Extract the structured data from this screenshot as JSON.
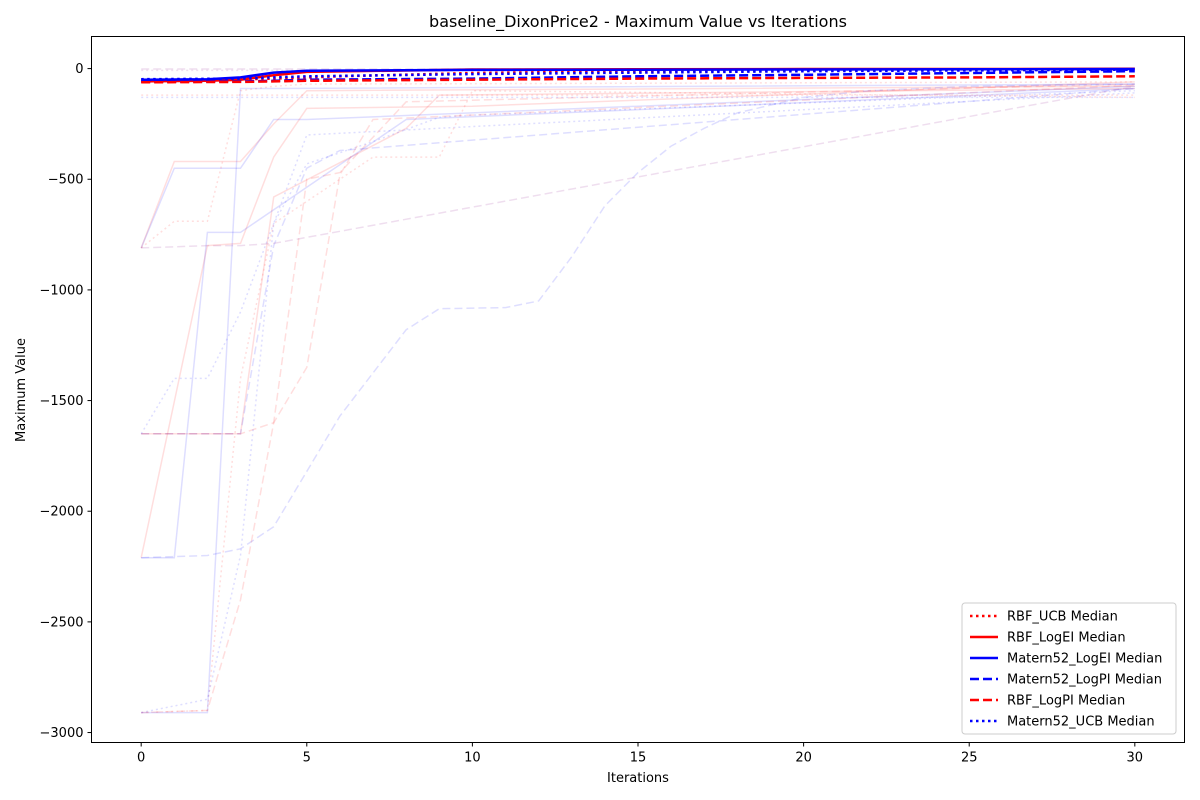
{
  "chart_data": {
    "type": "line",
    "title": "baseline_DixonPrice2 - Maximum Value vs Iterations",
    "xlabel": "Iterations",
    "ylabel": "Maximum Value",
    "xlim": [
      -1.5,
      31.5
    ],
    "ylim": [
      -3045,
      145
    ],
    "x_ticks": [
      0,
      5,
      10,
      15,
      20,
      25,
      30
    ],
    "y_ticks": [
      0,
      -500,
      -1000,
      -1500,
      -2000,
      -2500,
      -3000
    ],
    "y_tick_labels": [
      "0",
      "−500",
      "−1000",
      "−1500",
      "−2000",
      "−2500",
      "−3000"
    ],
    "grid": false,
    "legend_position": "lower-right",
    "series": [
      {
        "name": "RBF_UCB Median",
        "color": "#ff0000",
        "style": "dotted",
        "x": [
          0,
          2,
          4,
          6,
          10,
          15,
          20,
          25,
          30
        ],
        "y": [
          -55,
          -52,
          -45,
          -35,
          -20,
          -12,
          -8,
          -6,
          -4
        ]
      },
      {
        "name": "RBF_LogEI Median",
        "color": "#ff0000",
        "style": "solid",
        "x": [
          0,
          2,
          3,
          4,
          5,
          10,
          15,
          20,
          25,
          30
        ],
        "y": [
          -58,
          -55,
          -50,
          -30,
          -15,
          -4,
          -3,
          -2,
          -2,
          -1
        ]
      },
      {
        "name": "Matern52_LogEI Median",
        "color": "#0000ff",
        "style": "solid",
        "x": [
          0,
          2,
          3,
          4,
          5,
          10,
          15,
          20,
          25,
          30
        ],
        "y": [
          -50,
          -48,
          -40,
          -18,
          -10,
          -6,
          -5,
          -4,
          -3,
          -2
        ]
      },
      {
        "name": "Matern52_LogPI Median",
        "color": "#0000ff",
        "style": "dashed",
        "x": [
          0,
          3,
          4,
          5,
          10,
          15,
          20,
          25,
          30
        ],
        "y": [
          -60,
          -58,
          -55,
          -50,
          -45,
          -35,
          -28,
          -20,
          -12
        ]
      },
      {
        "name": "RBF_LogPI Median",
        "color": "#ff0000",
        "style": "dashed",
        "x": [
          0,
          3,
          4,
          5,
          10,
          15,
          20,
          25,
          30
        ],
        "y": [
          -62,
          -60,
          -58,
          -55,
          -50,
          -45,
          -42,
          -40,
          -35
        ]
      },
      {
        "name": "Matern52_UCB Median",
        "color": "#0000ff",
        "style": "dotted",
        "x": [
          0,
          3,
          4,
          5,
          10,
          15,
          20,
          25,
          30
        ],
        "y": [
          -48,
          -45,
          -40,
          -35,
          -25,
          -18,
          -12,
          -8,
          -5
        ]
      }
    ],
    "individual_runs": [
      {
        "color": "#ff0000",
        "style": "solid",
        "x": [
          0,
          1,
          3,
          4,
          5,
          30
        ],
        "y": [
          -810,
          -420,
          -420,
          -250,
          -100,
          -80
        ]
      },
      {
        "color": "#ff0000",
        "style": "solid",
        "x": [
          0,
          1,
          3,
          4,
          8,
          9,
          30
        ],
        "y": [
          -1650,
          -1650,
          -1650,
          -580,
          -270,
          -120,
          -90
        ]
      },
      {
        "color": "#ff0000",
        "style": "solid",
        "x": [
          0,
          2,
          3,
          4,
          5,
          10,
          30
        ],
        "y": [
          -2210,
          -800,
          -790,
          -400,
          -180,
          -170,
          -60
        ]
      },
      {
        "color": "#ff0000",
        "style": "dashed",
        "x": [
          0,
          2,
          3,
          4,
          5,
          6,
          8,
          30
        ],
        "y": [
          -2910,
          -2900,
          -2400,
          -1600,
          -500,
          -470,
          -150,
          -70
        ]
      },
      {
        "color": "#ff0000",
        "style": "dashed",
        "x": [
          0,
          3,
          4,
          5,
          6,
          7,
          30
        ],
        "y": [
          -1650,
          -1650,
          -1600,
          -1350,
          -480,
          -230,
          -75
        ]
      },
      {
        "color": "#ff0000",
        "style": "dotted",
        "x": [
          0,
          1,
          2,
          3,
          4,
          5,
          30
        ],
        "y": [
          -810,
          -690,
          -690,
          -100,
          -80,
          -70,
          -60
        ]
      },
      {
        "color": "#ff0000",
        "style": "dotted",
        "x": [
          0,
          2,
          3,
          4,
          7,
          9,
          10,
          30
        ],
        "y": [
          -2910,
          -2900,
          -1400,
          -700,
          -400,
          -400,
          -100,
          -130
        ]
      },
      {
        "color": "#0000ff",
        "style": "solid",
        "x": [
          0,
          1,
          3,
          4,
          5,
          30
        ],
        "y": [
          -810,
          -450,
          -450,
          -230,
          -230,
          -80
        ]
      },
      {
        "color": "#0000ff",
        "style": "solid",
        "x": [
          0,
          1,
          2,
          3,
          8,
          30
        ],
        "y": [
          -2210,
          -2210,
          -740,
          -740,
          -230,
          -90
        ]
      },
      {
        "color": "#0000ff",
        "style": "solid",
        "x": [
          0,
          2,
          3,
          4,
          30
        ],
        "y": [
          -2910,
          -2910,
          -90,
          -90,
          -70
        ]
      },
      {
        "color": "#0000ff",
        "style": "dashed",
        "x": [
          0,
          2,
          3,
          4,
          6,
          8,
          9,
          11,
          12,
          13,
          14,
          15,
          16,
          17,
          18,
          20,
          22,
          25,
          30
        ],
        "y": [
          -2210,
          -2200,
          -2170,
          -2070,
          -1570,
          -1180,
          -1085,
          -1080,
          -1050,
          -850,
          -620,
          -470,
          -350,
          -270,
          -200,
          -130,
          -100,
          -80,
          -70
        ]
      },
      {
        "color": "#0000ff",
        "style": "dashed",
        "x": [
          0,
          1,
          2,
          3,
          4,
          5,
          6,
          30
        ],
        "y": [
          -1650,
          -1650,
          -1650,
          -1650,
          -800,
          -450,
          -370,
          -90
        ]
      },
      {
        "color": "#0000ff",
        "style": "dotted",
        "x": [
          0,
          1,
          2,
          3,
          4,
          5,
          7,
          9,
          10,
          30
        ],
        "y": [
          -1650,
          -1400,
          -1400,
          -1100,
          -700,
          -430,
          -330,
          -220,
          -210,
          -100
        ]
      },
      {
        "color": "#0000ff",
        "style": "dotted",
        "x": [
          0,
          2,
          3,
          4,
          5,
          30
        ],
        "y": [
          -2910,
          -2850,
          -2200,
          -700,
          -300,
          -110
        ]
      },
      {
        "color": "#800080",
        "style": "dashed",
        "x": [
          0,
          1,
          2,
          3,
          4,
          30
        ],
        "y": [
          -810,
          -805,
          -800,
          -800,
          -790,
          -80
        ]
      },
      {
        "color": "#ff0000",
        "style": "dotted",
        "x": [
          0,
          30
        ],
        "y": [
          -120,
          -120
        ]
      },
      {
        "color": "#0000ff",
        "style": "dotted",
        "x": [
          0,
          30
        ],
        "y": [
          -130,
          -130
        ]
      },
      {
        "color": "#800080",
        "style": "dashed",
        "x": [
          0,
          30
        ],
        "y": [
          -2,
          -2
        ]
      },
      {
        "color": "#800080",
        "style": "dotted",
        "x": [
          0,
          30
        ],
        "y": [
          -8,
          -8
        ]
      }
    ]
  }
}
